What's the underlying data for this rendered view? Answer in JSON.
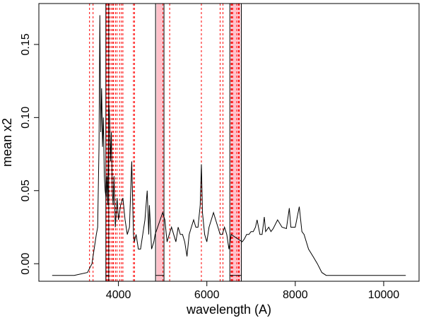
{
  "chart_data": {
    "type": "line",
    "title": "",
    "xlabel": "wavelength (A)",
    "ylabel": "mean x2",
    "xlim": [
      2200,
      10800
    ],
    "ylim": [
      -0.012,
      0.178
    ],
    "x_ticks": [
      4000,
      6000,
      8000,
      10000
    ],
    "y_ticks": [
      0.0,
      0.05,
      0.1,
      0.15
    ],
    "x_tick_labels": [
      "4000",
      "6000",
      "8000",
      "10000"
    ],
    "y_tick_labels": [
      "0.00",
      "0.05",
      "0.10",
      "0.15"
    ],
    "grid": false,
    "legend": "none",
    "series": [
      {
        "color": "#000000",
        "x": [
          2500,
          3000,
          3300,
          3400,
          3450,
          3500,
          3530,
          3560,
          3580,
          3600,
          3620,
          3640,
          3660,
          3680,
          3700,
          3720,
          3740,
          3760,
          3780,
          3800,
          3820,
          3840,
          3860,
          3880,
          3900,
          3930,
          3970,
          4000,
          4050,
          4100,
          4150,
          4200,
          4250,
          4300,
          4340,
          4360,
          4400,
          4450,
          4500,
          4550,
          4600,
          4650,
          4686,
          4700,
          4750,
          4800,
          4830,
          5000,
          5050,
          5100,
          5150,
          5200,
          5250,
          5300,
          5350,
          5400,
          5450,
          5500,
          5550,
          5600,
          5650,
          5700,
          5750,
          5800,
          5850,
          5876,
          5900,
          5950,
          6000,
          6050,
          6100,
          6150,
          6200,
          6250,
          6300,
          6350,
          6400,
          6450,
          6500,
          6550,
          6800,
          6850,
          6900,
          6950,
          7000,
          7050,
          7100,
          7136,
          7200,
          7250,
          7300,
          7330,
          7400,
          7450,
          7500,
          7600,
          7700,
          7800,
          7865,
          7900,
          8000,
          8090,
          8150,
          8200,
          8300,
          8400,
          8500,
          8600,
          8700,
          8800,
          9000,
          10500
        ],
        "y": [
          -0.008,
          -0.008,
          -0.006,
          0.0,
          0.01,
          0.02,
          0.025,
          0.08,
          0.17,
          0.09,
          0.12,
          0.08,
          0.1,
          0.06,
          0.05,
          0.045,
          0.06,
          0.04,
          0.11,
          0.1,
          0.07,
          0.09,
          0.05,
          0.04,
          0.06,
          0.025,
          0.045,
          0.03,
          0.04,
          0.045,
          0.03,
          0.02,
          0.025,
          0.07,
          0.02,
          0.015,
          0.02,
          0.01,
          0.01,
          0.02,
          0.03,
          0.05,
          0.02,
          0.04,
          0.01,
          0.015,
          0.02,
          0.035,
          0.03,
          0.015,
          0.02,
          0.025,
          0.02,
          0.015,
          0.025,
          0.02,
          0.02,
          0.015,
          0.005,
          0.02,
          0.025,
          0.03,
          0.025,
          0.025,
          0.04,
          0.068,
          0.035,
          0.02,
          0.015,
          0.025,
          0.03,
          0.035,
          0.03,
          0.025,
          0.02,
          0.02,
          0.025,
          0.02,
          0.01,
          0.02,
          0.015,
          0.017,
          0.02,
          0.02,
          0.022,
          0.022,
          0.025,
          0.03,
          0.02,
          0.02,
          0.032,
          0.022,
          0.025,
          0.022,
          0.024,
          0.03,
          0.025,
          0.024,
          0.038,
          0.025,
          0.025,
          0.039,
          0.022,
          0.02,
          0.01,
          0.005,
          0.0,
          -0.006,
          -0.008,
          -0.008,
          -0.008,
          -0.008
        ]
      }
    ],
    "vertical_lines": {
      "color": "#ff0000",
      "style": "dashed",
      "x": [
        3346,
        3426,
        3727,
        3750,
        3770,
        3798,
        3835,
        3869,
        3889,
        3933,
        3968,
        4026,
        4068,
        4101,
        4340,
        4363,
        5007,
        5159,
        5876,
        6300,
        6364,
        6548,
        6563,
        6584,
        6678,
        6716,
        6731
      ]
    },
    "shaded_bands": {
      "color": "#ffb6c1",
      "ranges": [
        [
          3715,
          3745
        ],
        [
          4860,
          5010
        ],
        [
          6540,
          6760
        ]
      ]
    },
    "masked_segments": [
      [
        3715,
        3780
      ],
      [
        4840,
        5030
      ],
      [
        6520,
        6780
      ]
    ]
  }
}
